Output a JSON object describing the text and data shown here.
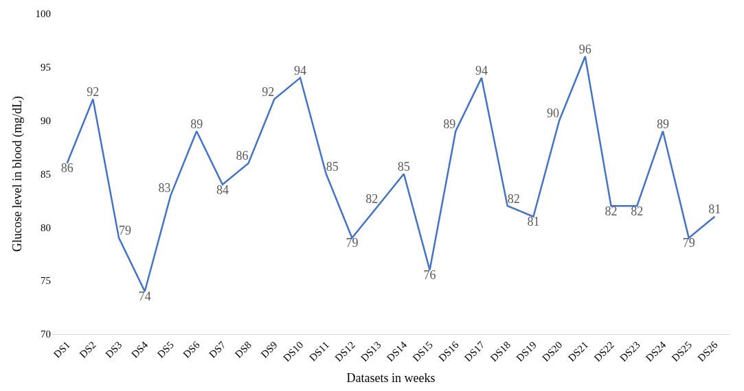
{
  "chart_data": {
    "type": "line",
    "xlabel": "Datasets in weeks",
    "ylabel": "Glucose level in blood (mg/dL)",
    "categories": [
      "DS1",
      "DS2",
      "DS3",
      "DS4",
      "DS5",
      "DS6",
      "DS7",
      "DS8",
      "DS9",
      "DS10",
      "DS11",
      "DS12",
      "DS13",
      "DS14",
      "DS15",
      "DS16",
      "DS17",
      "DS18",
      "DS19",
      "DS20",
      "DS21",
      "DS22",
      "DS23",
      "DS24",
      "DS25",
      "DS26"
    ],
    "series": [
      {
        "color": "#4472c4",
        "values": [
          86,
          92,
          79,
          74,
          83,
          89,
          84,
          86,
          92,
          94,
          85,
          79,
          82,
          85,
          76,
          89,
          94,
          82,
          81,
          90,
          96,
          82,
          82,
          89,
          79,
          81
        ]
      }
    ],
    "ylim": [
      70,
      100
    ],
    "yticks": [
      70,
      75,
      80,
      85,
      90,
      95,
      100
    ],
    "legend": false,
    "marker": "none",
    "line_style": "solid",
    "data_labels": true
  }
}
